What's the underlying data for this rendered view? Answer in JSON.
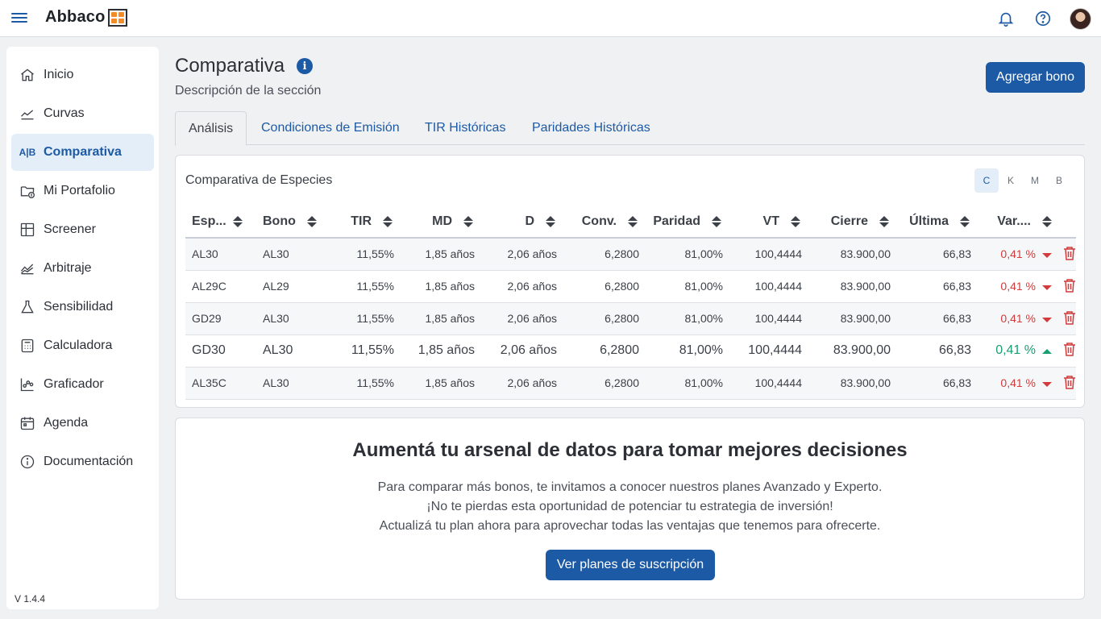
{
  "brand": {
    "name": "Abbaco"
  },
  "sidebar": {
    "items": [
      {
        "label": "Inicio",
        "icon": "home-icon"
      },
      {
        "label": "Curvas",
        "icon": "line-chart-icon"
      },
      {
        "label": "Comparativa",
        "icon": "ab-compare-icon",
        "active": true
      },
      {
        "label": "Mi Portafolio",
        "icon": "folder-dollar-icon"
      },
      {
        "label": "Screener",
        "icon": "screener-icon"
      },
      {
        "label": "Arbitraje",
        "icon": "area-chart-icon"
      },
      {
        "label": "Sensibilidad",
        "icon": "flask-icon"
      },
      {
        "label": "Calculadora",
        "icon": "calculator-icon"
      },
      {
        "label": "Graficador",
        "icon": "graph-icon"
      },
      {
        "label": "Agenda",
        "icon": "calendar-icon"
      },
      {
        "label": "Documentación",
        "icon": "info-icon"
      }
    ],
    "ab_glyph": "A|B",
    "version": "V 1.4.4"
  },
  "header": {
    "title": "Comparativa",
    "info_glyph": "i",
    "description": "Descripción de la sección",
    "add_button": "Agregar bono"
  },
  "tabs": [
    {
      "label": "Análisis",
      "active": true
    },
    {
      "label": "Condiciones de Emisión"
    },
    {
      "label": "TIR Históricas"
    },
    {
      "label": "Paridades Históricas"
    }
  ],
  "table_card": {
    "title": "Comparativa de Especies",
    "units": [
      {
        "label": "C",
        "active": true
      },
      {
        "label": "K"
      },
      {
        "label": "M"
      },
      {
        "label": "B"
      }
    ],
    "columns": [
      "Esp...",
      "Bono",
      "TIR",
      "MD",
      "D",
      "Conv.",
      "Paridad",
      "VT",
      "Cierre",
      "Última",
      "Var...."
    ],
    "rows": [
      {
        "especie": "AL30",
        "bono": "AL30",
        "tir": "11,55%",
        "md": "1,85 años",
        "d": "2,06 años",
        "conv": "6,2800",
        "paridad": "81,00%",
        "vt": "100,4444",
        "cierre": "83.900,00",
        "ultima": "66,83",
        "var": "0,41 %",
        "trend": "down"
      },
      {
        "especie": "AL29C",
        "bono": "AL29",
        "tir": "11,55%",
        "md": "1,85 años",
        "d": "2,06 años",
        "conv": "6,2800",
        "paridad": "81,00%",
        "vt": "100,4444",
        "cierre": "83.900,00",
        "ultima": "66,83",
        "var": "0,41 %",
        "trend": "down"
      },
      {
        "especie": "GD29",
        "bono": "AL30",
        "tir": "11,55%",
        "md": "1,85 años",
        "d": "2,06 años",
        "conv": "6,2800",
        "paridad": "81,00%",
        "vt": "100,4444",
        "cierre": "83.900,00",
        "ultima": "66,83",
        "var": "0,41 %",
        "trend": "down"
      },
      {
        "especie": "GD30",
        "bono": "AL30",
        "tir": "11,55%",
        "md": "1,85 años",
        "d": "2,06 años",
        "conv": "6,2800",
        "paridad": "81,00%",
        "vt": "100,4444",
        "cierre": "83.900,00",
        "ultima": "66,83",
        "var": "0,41 %",
        "trend": "up"
      },
      {
        "especie": "AL35C",
        "bono": "AL30",
        "tir": "11,55%",
        "md": "1,85 años",
        "d": "2,06 años",
        "conv": "6,2800",
        "paridad": "81,00%",
        "vt": "100,4444",
        "cierre": "83.900,00",
        "ultima": "66,83",
        "var": "0,41 %",
        "trend": "down"
      }
    ]
  },
  "promo": {
    "title": "Aumentá tu arsenal de datos para tomar mejores decisiones",
    "line1": "Para comparar más bonos, te invitamos a conocer nuestros planes Avanzado y Experto.",
    "line2": "¡No te pierdas esta oportunidad de potenciar tu estrategia de inversión!",
    "line3": "Actualizá tu plan ahora para aprovechar todas las ventajas que tenemos para ofrecerte.",
    "button": "Ver planes de suscripción"
  },
  "colors": {
    "primary": "#1d5aa5",
    "negative": "#d13b3b",
    "positive": "#1a9e73",
    "active_bg": "#e4eef9"
  }
}
